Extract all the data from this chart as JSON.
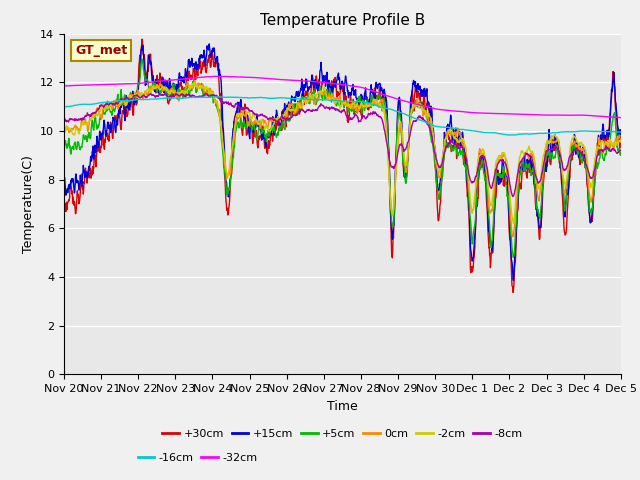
{
  "title": "Temperature Profile B",
  "xlabel": "Time",
  "ylabel": "Temperature(C)",
  "ylim": [
    0,
    14
  ],
  "yticks": [
    0,
    2,
    4,
    6,
    8,
    10,
    12,
    14
  ],
  "background_color": "#f0f0f0",
  "plot_bg_color": "#e8e8e8",
  "series": {
    "+30cm": {
      "color": "#dd0000",
      "lw": 1.0
    },
    "+15cm": {
      "color": "#0000dd",
      "lw": 1.0
    },
    "+5cm": {
      "color": "#00bb00",
      "lw": 1.0
    },
    "0cm": {
      "color": "#ff8800",
      "lw": 1.0
    },
    "-2cm": {
      "color": "#cccc00",
      "lw": 1.0
    },
    "-8cm": {
      "color": "#aa00aa",
      "lw": 1.0
    },
    "-16cm": {
      "color": "#00cccc",
      "lw": 1.0
    },
    "-32cm": {
      "color": "#ff00ff",
      "lw": 1.0
    }
  },
  "legend_label": "GT_met",
  "legend_bg": "#ffffcc",
  "legend_border": "#aa8800",
  "legend_text_color": "#990000",
  "xtick_labels": [
    "Nov 20",
    "Nov 21",
    "Nov 22",
    "Nov 23",
    "Nov 24",
    "Nov 25",
    "Nov 26",
    "Nov 27",
    "Nov 28",
    "Nov 29",
    "Nov 30",
    "Dec 1",
    "Dec 2",
    "Dec 3",
    "Dec 4",
    "Dec 5"
  ],
  "grid_color": "#ffffff",
  "grid_lw": 0.8
}
